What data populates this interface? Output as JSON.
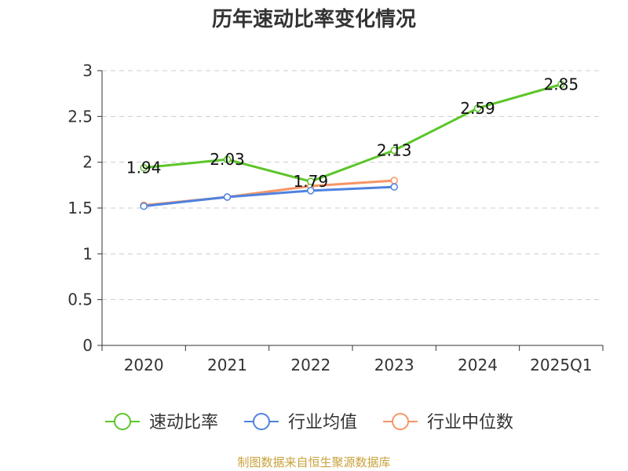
{
  "chart_data": {
    "type": "line",
    "title": "历年速动比率变化情况",
    "categories": [
      "2020",
      "2021",
      "2022",
      "2023",
      "2024",
      "2025Q1"
    ],
    "y_ticks": [
      "0",
      "0.5",
      "1",
      "1.5",
      "2",
      "2.5",
      "3"
    ],
    "ylim": [
      0,
      3
    ],
    "grid": true,
    "legend_position": "bottom",
    "series": [
      {
        "name": "速动比率",
        "color": "#5cc529",
        "values": [
          1.94,
          2.03,
          1.79,
          2.13,
          2.59,
          2.85
        ],
        "labels": [
          "1.94",
          "2.03",
          "1.79",
          "2.13",
          "2.59",
          "2.85"
        ]
      },
      {
        "name": "行业均值",
        "color": "#4f82df",
        "values": [
          1.52,
          1.62,
          1.69,
          1.73,
          null,
          null
        ]
      },
      {
        "name": "行业中位数",
        "color": "#f79565",
        "values": [
          1.53,
          1.62,
          1.74,
          1.8,
          null,
          null
        ]
      }
    ]
  },
  "source": "制图数据来自恒生聚源数据库"
}
